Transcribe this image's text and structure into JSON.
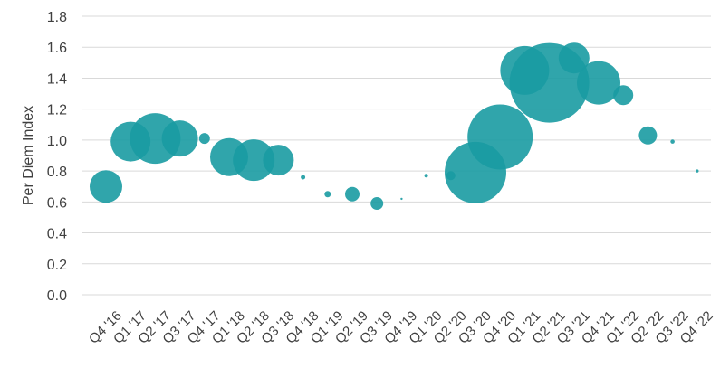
{
  "chart_data": {
    "type": "bubble",
    "title": "",
    "xlabel": "",
    "ylabel": "Per Diem Index",
    "ylim": [
      0,
      1.8
    ],
    "yticks": [
      "0.0",
      "0.2",
      "0.4",
      "0.6",
      "0.8",
      "1.0",
      "1.2",
      "1.4",
      "1.6",
      "1.8"
    ],
    "grid": true,
    "legend": "none",
    "bubble_color": "#1a9ba2",
    "categories": [
      "Q4 '16",
      "Q1 '17",
      "Q2 '17",
      "Q3 '17",
      "Q4 '17",
      "Q1 '18",
      "Q2 '18",
      "Q3 '18",
      "Q4 '18",
      "Q1 '19",
      "Q2 '19",
      "Q3 '19",
      "Q4 '19",
      "Q1 '20",
      "Q2 '20",
      "Q3 '20",
      "Q4 '20",
      "Q1 '21",
      "Q2 '21",
      "Q3 '21",
      "Q4 '21",
      "Q1 '22",
      "Q2 '22",
      "Q3 '22",
      "Q4 '22"
    ],
    "values": [
      0.7,
      0.99,
      1.01,
      1.01,
      1.01,
      0.89,
      0.87,
      0.87,
      0.76,
      0.65,
      0.65,
      0.59,
      0.62,
      0.77,
      0.77,
      0.79,
      1.02,
      1.45,
      1.37,
      1.53,
      1.37,
      1.29,
      1.03,
      0.99,
      0.8
    ],
    "sizes": [
      18,
      22,
      28,
      20,
      6,
      21,
      23,
      17,
      2.5,
      3.5,
      8,
      7,
      1.2,
      2,
      5,
      34,
      36,
      27,
      44,
      17,
      24,
      11,
      10,
      2.3,
      1.7
    ]
  }
}
